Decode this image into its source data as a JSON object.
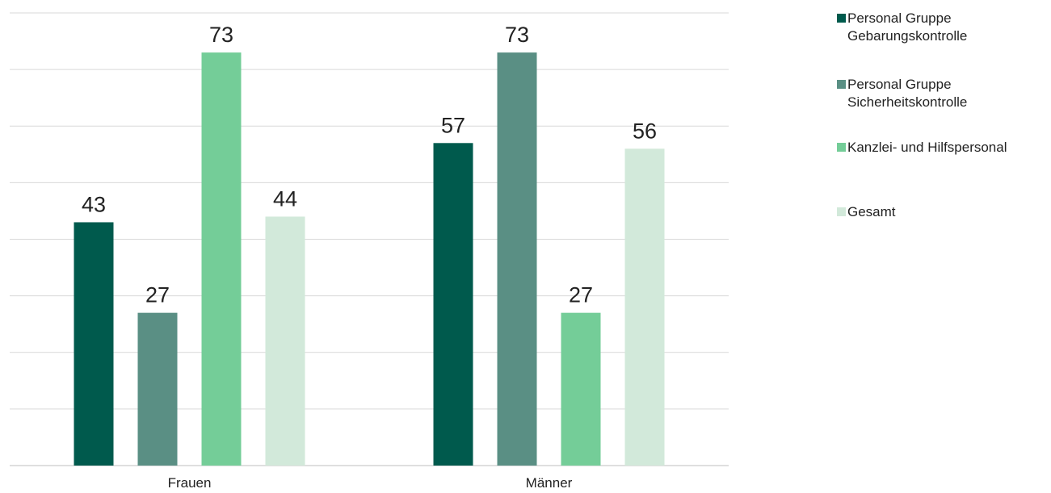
{
  "chart_data": {
    "type": "bar",
    "categories": [
      "Frauen",
      "Männer"
    ],
    "series": [
      {
        "name": "Personal Gruppe Gebarungskontrolle",
        "values": [
          43,
          57
        ],
        "color": "#005a4d"
      },
      {
        "name": "Personal Gruppe Sicherheitskontrolle",
        "values": [
          27,
          73
        ],
        "color": "#5a8f84"
      },
      {
        "name": "Kanzlei- und Hilfspersonal",
        "values": [
          73,
          27
        ],
        "color": "#74cd98"
      },
      {
        "name": "Gesamt",
        "values": [
          44,
          56
        ],
        "color": "#d2e9da"
      }
    ],
    "ylim": [
      0,
      80
    ],
    "grid": true,
    "legend_position": "right",
    "data_labels": true
  },
  "legend": {
    "items": [
      {
        "label_lines": [
          "Personal Gruppe",
          "Gebarungskontrolle"
        ]
      },
      {
        "label_lines": [
          "Personal Gruppe",
          "Sicherheitskontrolle"
        ]
      },
      {
        "label_lines": [
          "Kanzlei- und Hilfspersonal"
        ]
      },
      {
        "label_lines": [
          "Gesamt"
        ]
      }
    ]
  }
}
